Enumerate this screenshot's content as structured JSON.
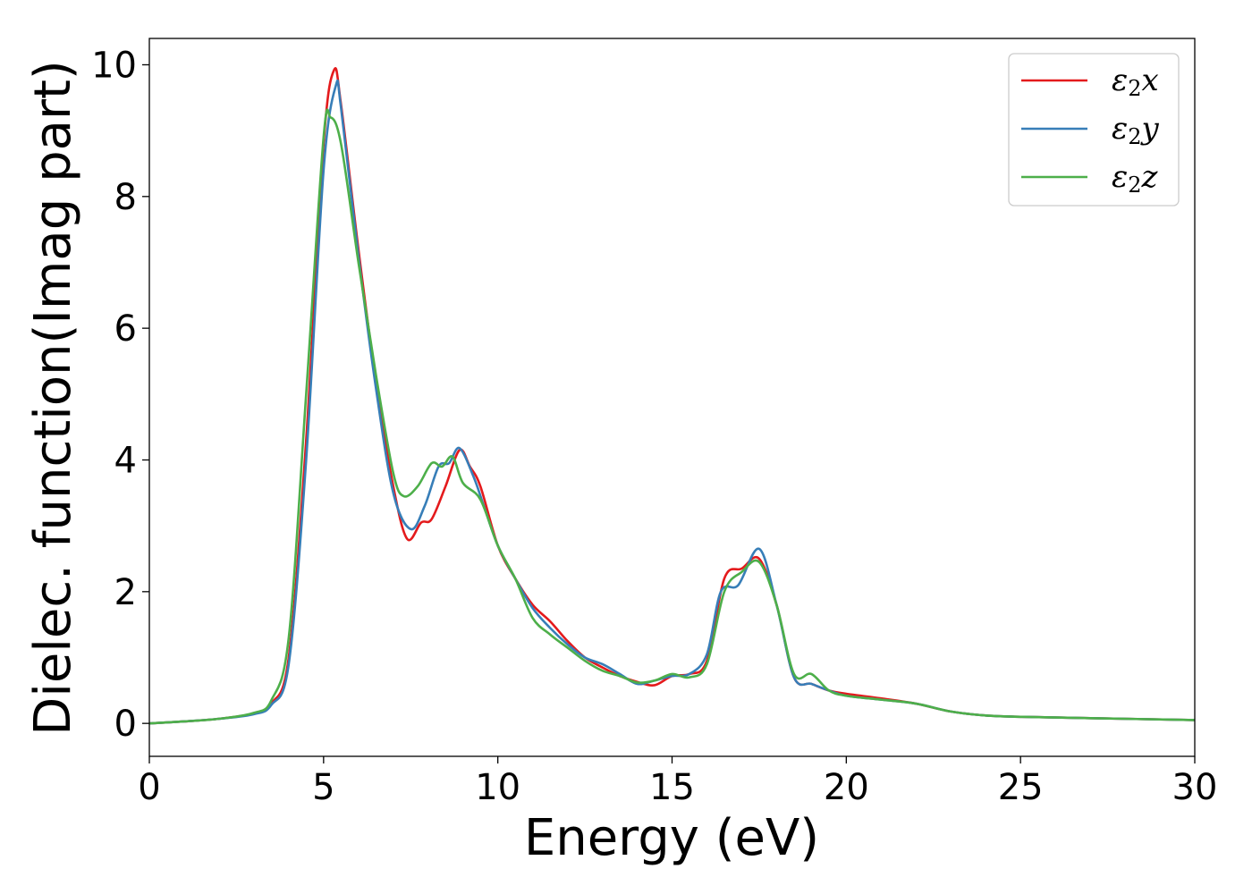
{
  "chart_data": {
    "type": "line",
    "title": "",
    "xlabel": "Energy (eV)",
    "ylabel": "Dielec. function(Imag part)",
    "xlim": [
      0,
      30
    ],
    "ylim": [
      -0.5,
      10.4
    ],
    "xticks": [
      0,
      5,
      10,
      15,
      20,
      25,
      30
    ],
    "yticks": [
      0,
      2,
      4,
      6,
      8,
      10
    ],
    "grid": false,
    "legend_position": "top-right",
    "series": [
      {
        "name": "ε₂x",
        "legend_base": "ε",
        "legend_sub": "2",
        "legend_suffix": "x",
        "color": "#e41a1c",
        "x": [
          0,
          1,
          2,
          3,
          3.5,
          4,
          4.5,
          5,
          5.3,
          5.5,
          6,
          6.5,
          7,
          7.4,
          7.8,
          8.1,
          8.5,
          8.9,
          9.2,
          9.5,
          10,
          10.5,
          11,
          11.5,
          12,
          12.5,
          13,
          13.5,
          14,
          14.5,
          15,
          15.5,
          16,
          16.5,
          17,
          17.5,
          18,
          18.5,
          19,
          19.5,
          20,
          21,
          22,
          23,
          24,
          25,
          27,
          30
        ],
        "y": [
          0,
          0.03,
          0.07,
          0.15,
          0.3,
          1.0,
          4.3,
          8.8,
          9.92,
          9.4,
          7.2,
          5.2,
          3.6,
          2.8,
          3.05,
          3.1,
          3.6,
          4.15,
          3.9,
          3.6,
          2.7,
          2.2,
          1.8,
          1.55,
          1.25,
          1.0,
          0.85,
          0.72,
          0.63,
          0.58,
          0.72,
          0.75,
          0.95,
          2.2,
          2.35,
          2.5,
          1.8,
          0.7,
          0.6,
          0.5,
          0.45,
          0.38,
          0.3,
          0.18,
          0.12,
          0.1,
          0.08,
          0.05
        ]
      },
      {
        "name": "ε₂y",
        "legend_base": "ε",
        "legend_sub": "2",
        "legend_suffix": "y",
        "color": "#377eb8",
        "x": [
          0,
          1,
          2,
          3,
          3.5,
          4,
          4.5,
          5,
          5.35,
          5.5,
          6,
          6.5,
          7,
          7.5,
          7.9,
          8.3,
          8.6,
          8.9,
          9.3,
          9.6,
          10,
          10.5,
          11,
          11.5,
          12,
          12.5,
          13,
          13.5,
          14,
          14.5,
          15,
          15.5,
          16,
          16.4,
          16.9,
          17.5,
          18,
          18.5,
          19,
          19.5,
          20,
          21,
          22,
          23,
          24,
          25,
          27,
          30
        ],
        "y": [
          0,
          0.03,
          0.07,
          0.14,
          0.28,
          0.9,
          4.0,
          8.4,
          9.68,
          9.35,
          7.1,
          5.1,
          3.5,
          2.95,
          3.3,
          3.9,
          3.95,
          4.18,
          3.75,
          3.3,
          2.7,
          2.2,
          1.75,
          1.45,
          1.2,
          1.0,
          0.9,
          0.75,
          0.6,
          0.65,
          0.72,
          0.75,
          1.05,
          2.0,
          2.1,
          2.65,
          1.8,
          0.7,
          0.6,
          0.5,
          0.42,
          0.36,
          0.3,
          0.18,
          0.12,
          0.1,
          0.08,
          0.05
        ]
      },
      {
        "name": "ε₂z",
        "legend_base": "ε",
        "legend_sub": "2",
        "legend_suffix": "z",
        "color": "#4daf4a",
        "x": [
          0,
          1,
          2,
          3,
          3.5,
          4,
          4.5,
          5,
          5.2,
          5.5,
          6,
          6.5,
          7,
          7.3,
          7.7,
          8.1,
          8.4,
          8.7,
          9.0,
          9.5,
          10,
          10.5,
          11,
          11.5,
          12,
          12.5,
          13,
          13.5,
          14,
          14.5,
          15,
          15.5,
          16,
          16.5,
          17,
          17.5,
          18,
          18.5,
          19,
          19.5,
          20,
          21,
          22,
          23,
          24,
          25,
          27,
          30
        ],
        "y": [
          0,
          0.03,
          0.07,
          0.16,
          0.35,
          1.3,
          5.0,
          8.9,
          9.2,
          8.8,
          7.0,
          5.3,
          3.8,
          3.45,
          3.6,
          3.95,
          3.9,
          4.05,
          3.65,
          3.4,
          2.7,
          2.2,
          1.6,
          1.35,
          1.15,
          0.95,
          0.8,
          0.72,
          0.62,
          0.65,
          0.75,
          0.7,
          0.9,
          2.0,
          2.3,
          2.45,
          1.8,
          0.75,
          0.75,
          0.5,
          0.42,
          0.36,
          0.3,
          0.18,
          0.12,
          0.1,
          0.08,
          0.05
        ]
      }
    ]
  }
}
